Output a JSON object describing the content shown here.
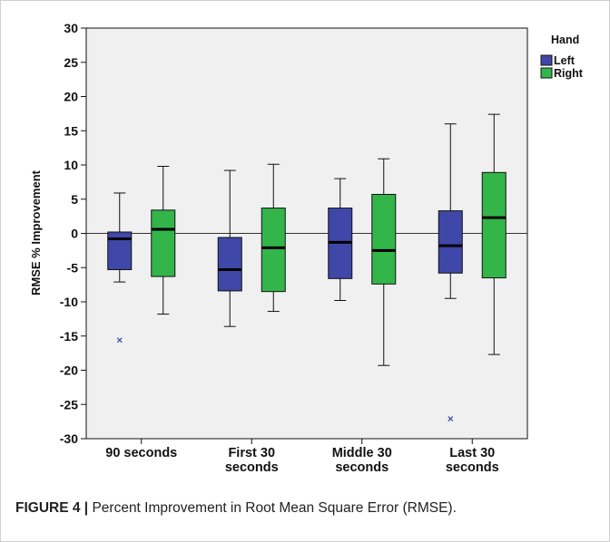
{
  "caption": {
    "label": "FIGURE 4 |",
    "text": " Percent Improvement in Root Mean Square Error (RMSE)."
  },
  "chart_data": {
    "type": "box",
    "ylabel": "RMSE % Improvement",
    "xlabel": "",
    "ylim": [
      -30,
      30
    ],
    "yticks": [
      30,
      25,
      20,
      15,
      10,
      5,
      0,
      -5,
      -10,
      -15,
      -20,
      -25,
      -30
    ],
    "reference_line": 0,
    "categories": [
      [
        "90 seconds"
      ],
      [
        "First 30",
        "seconds"
      ],
      [
        "Middle 30",
        "seconds"
      ],
      [
        "Last 30",
        "seconds"
      ]
    ],
    "legend": {
      "title": "Hand",
      "position": "top-right",
      "entries": [
        {
          "name": "Left",
          "color": "#3f48a8"
        },
        {
          "name": "Right",
          "color": "#33b54a"
        }
      ]
    },
    "series": [
      {
        "name": "Left",
        "color": "#3f48a8",
        "boxes": [
          {
            "min": -7.1,
            "q1": -5.3,
            "median": -0.8,
            "q3": 0.2,
            "max": 5.9,
            "outliers": [
              -15.6
            ]
          },
          {
            "min": -13.6,
            "q1": -8.4,
            "median": -5.3,
            "q3": -0.6,
            "max": 9.2,
            "outliers": []
          },
          {
            "min": -9.8,
            "q1": -6.6,
            "median": -1.3,
            "q3": 3.7,
            "max": 8.0,
            "outliers": []
          },
          {
            "min": -9.5,
            "q1": -5.8,
            "median": -1.8,
            "q3": 3.3,
            "max": 16.0,
            "outliers": [
              -27.1
            ]
          }
        ]
      },
      {
        "name": "Right",
        "color": "#33b54a",
        "boxes": [
          {
            "min": -11.8,
            "q1": -6.3,
            "median": 0.6,
            "q3": 3.4,
            "max": 9.8,
            "outliers": []
          },
          {
            "min": -11.4,
            "q1": -8.5,
            "median": -2.1,
            "q3": 3.7,
            "max": 10.1,
            "outliers": []
          },
          {
            "min": -19.3,
            "q1": -7.4,
            "median": -2.5,
            "q3": 5.7,
            "max": 10.9,
            "outliers": []
          },
          {
            "min": -17.7,
            "q1": -6.5,
            "median": 2.3,
            "q3": 8.9,
            "max": 17.4,
            "outliers": []
          }
        ]
      }
    ]
  }
}
